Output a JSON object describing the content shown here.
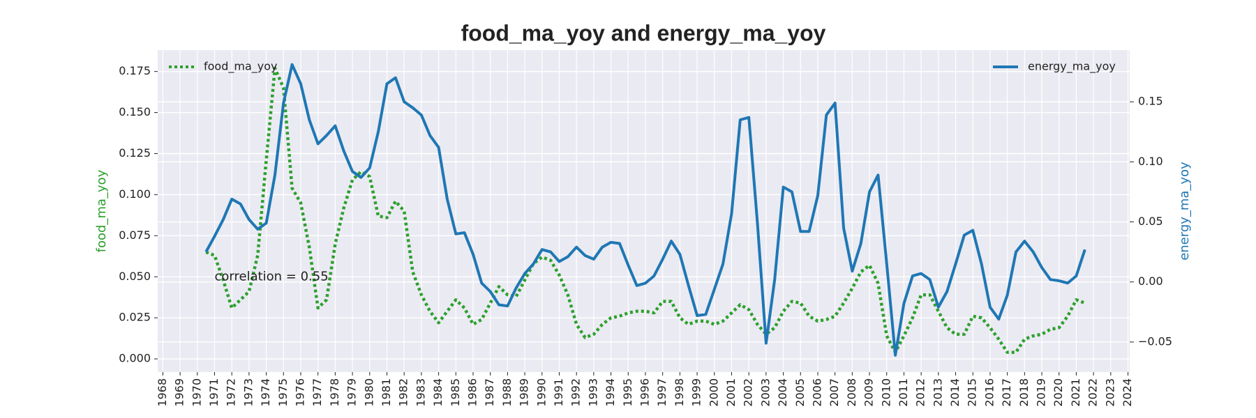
{
  "chart_data": {
    "type": "line",
    "title": "food_ma_yoy and energy_ma_yoy",
    "ylabel": "food_ma_yoy",
    "y2label": "energy_ma_yoy",
    "annotation": "correlation = 0.55",
    "annotation_xy": [
      1971,
      0.05
    ],
    "grid": true,
    "x": [
      1970.5,
      1971,
      1971.5,
      1972,
      1972.5,
      1973,
      1973.5,
      1974,
      1974.5,
      1975,
      1975.5,
      1976,
      1976.5,
      1977,
      1977.5,
      1978,
      1978.5,
      1979,
      1979.5,
      1980,
      1980.5,
      1981,
      1981.5,
      1982,
      1982.5,
      1983,
      1983.5,
      1984,
      1984.5,
      1985,
      1985.5,
      1986,
      1986.5,
      1987,
      1987.5,
      1988,
      1988.5,
      1989,
      1989.5,
      1990,
      1990.5,
      1991,
      1991.5,
      1992,
      1992.5,
      1993,
      1993.5,
      1994,
      1994.5,
      1995,
      1995.5,
      1996,
      1996.5,
      1997,
      1997.5,
      1998,
      1998.5,
      1999,
      1999.5,
      2000,
      2000.5,
      2001,
      2001.5,
      2002,
      2002.5,
      2003,
      2003.5,
      2004,
      2004.5,
      2005,
      2005.5,
      2006,
      2006.5,
      2007,
      2007.5,
      2008,
      2008.5,
      2009,
      2009.5,
      2010,
      2010.5,
      2011,
      2011.5,
      2012,
      2012.5,
      2013,
      2013.5,
      2014,
      2014.5,
      2015,
      2015.5,
      2016,
      2016.5,
      2017,
      2017.5,
      2018,
      2018.5,
      2019,
      2019.5,
      2020,
      2020.5,
      2021,
      2021.5
    ],
    "xlim": [
      1967.7,
      2024.1
    ],
    "xticks": [
      1968,
      1969,
      1970,
      1971,
      1972,
      1973,
      1974,
      1975,
      1976,
      1977,
      1978,
      1979,
      1980,
      1981,
      1982,
      1983,
      1984,
      1985,
      1986,
      1987,
      1988,
      1989,
      1990,
      1991,
      1992,
      1993,
      1994,
      1995,
      1996,
      1997,
      1998,
      1999,
      2000,
      2001,
      2002,
      2003,
      2004,
      2005,
      2006,
      2007,
      2008,
      2009,
      2010,
      2011,
      2012,
      2013,
      2014,
      2015,
      2016,
      2017,
      2018,
      2019,
      2020,
      2021,
      2022,
      2023,
      2024
    ],
    "ylim": [
      -0.008,
      0.188
    ],
    "yticks": [
      {
        "value": 0,
        "label": "0.000"
      },
      {
        "value": 0.025,
        "label": "0.025"
      },
      {
        "value": 0.05,
        "label": "0.050"
      },
      {
        "value": 0.075,
        "label": "0.075"
      },
      {
        "value": 0.1,
        "label": "0.100"
      },
      {
        "value": 0.125,
        "label": "0.125"
      },
      {
        "value": 0.15,
        "label": "0.150"
      },
      {
        "value": 0.175,
        "label": "0.175"
      }
    ],
    "y2lim": [
      -0.075,
      0.193
    ],
    "y2ticks": [
      {
        "value": -0.05,
        "label": "−0.05"
      },
      {
        "value": 0,
        "label": "0.00"
      },
      {
        "value": 0.05,
        "label": "0.05"
      },
      {
        "value": 0.1,
        "label": "0.10"
      },
      {
        "value": 0.15,
        "label": "0.15"
      }
    ],
    "series": [
      {
        "name": "food_ma_yoy",
        "color": "#2ca02c",
        "linestyle": "dotted",
        "legend": "upper left",
        "values": [
          0.065,
          0.063,
          0.048,
          0.031,
          0.036,
          0.041,
          0.063,
          0.121,
          0.177,
          0.165,
          0.104,
          0.095,
          0.068,
          0.031,
          0.036,
          0.07,
          0.092,
          0.109,
          0.114,
          0.111,
          0.087,
          0.086,
          0.096,
          0.09,
          0.053,
          0.039,
          0.029,
          0.022,
          0.029,
          0.036,
          0.031,
          0.021,
          0.024,
          0.034,
          0.044,
          0.039,
          0.038,
          0.048,
          0.058,
          0.062,
          0.06,
          0.051,
          0.039,
          0.021,
          0.013,
          0.015,
          0.021,
          0.025,
          0.026,
          0.028,
          0.029,
          0.029,
          0.028,
          0.035,
          0.035,
          0.025,
          0.021,
          0.023,
          0.023,
          0.021,
          0.023,
          0.028,
          0.033,
          0.03,
          0.021,
          0.015,
          0.019,
          0.029,
          0.035,
          0.034,
          0.026,
          0.023,
          0.024,
          0.026,
          0.034,
          0.043,
          0.053,
          0.057,
          0.046,
          0.014,
          0.004,
          0.014,
          0.025,
          0.039,
          0.039,
          0.029,
          0.019,
          0.015,
          0.015,
          0.026,
          0.025,
          0.019,
          0.012,
          0.004,
          0.004,
          0.012,
          0.014,
          0.015,
          0.018,
          0.019,
          0.026,
          0.036,
          0.034
        ]
      },
      {
        "name": "energy_ma_yoy",
        "color": "#1f77b4",
        "linestyle": "solid",
        "legend": "upper right",
        "axis": "y2",
        "values": [
          0.025,
          0.038,
          0.052,
          0.069,
          0.065,
          0.052,
          0.044,
          0.049,
          0.089,
          0.149,
          0.181,
          0.165,
          0.135,
          0.115,
          0.122,
          0.13,
          0.109,
          0.092,
          0.087,
          0.095,
          0.125,
          0.165,
          0.17,
          0.15,
          0.145,
          0.139,
          0.122,
          0.112,
          0.069,
          0.04,
          0.041,
          0.023,
          -0.001,
          -0.008,
          -0.019,
          -0.02,
          -0.005,
          0.007,
          0.015,
          0.027,
          0.025,
          0.017,
          0.021,
          0.029,
          0.022,
          0.019,
          0.029,
          0.033,
          0.032,
          0.014,
          -0.003,
          -0.001,
          0.005,
          0.019,
          0.034,
          0.023,
          -0.003,
          -0.028,
          -0.027,
          -0.006,
          0.015,
          0.057,
          0.135,
          0.137,
          0.049,
          -0.051,
          0.002,
          0.079,
          0.075,
          0.042,
          0.042,
          0.072,
          0.139,
          0.149,
          0.045,
          0.009,
          0.032,
          0.075,
          0.089,
          0.015,
          -0.061,
          -0.018,
          0.005,
          0.007,
          0.002,
          -0.021,
          -0.008,
          0.015,
          0.039,
          0.043,
          0.015,
          -0.021,
          -0.031,
          -0.011,
          0.025,
          0.034,
          0.025,
          0.012,
          0.002,
          0.001,
          -0.001,
          0.005,
          0.027
        ]
      }
    ]
  }
}
